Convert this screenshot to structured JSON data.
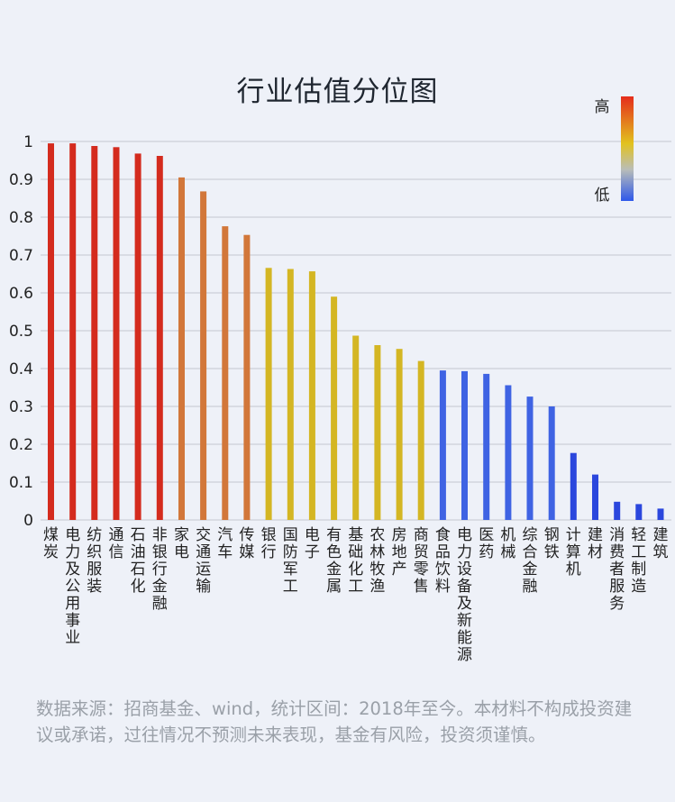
{
  "source_note": "数据来源：招商基金、wind，统计区间：2018年至今。本材料不构成投资建议或承诺，过往情况不预测未来表现，基金有风险，投资须谨慎。",
  "chart_data": {
    "type": "bar",
    "title": "行业估值分位图",
    "xlabel": "",
    "ylabel": "",
    "ylim": [
      0,
      1
    ],
    "yticks": [
      "0",
      "0.1",
      "0.2",
      "0.3",
      "0.4",
      "0.5",
      "0.6",
      "0.7",
      "0.8",
      "0.9",
      "1"
    ],
    "grid": true,
    "legend": {
      "type": "color-scale",
      "high_label": "高",
      "low_label": "低",
      "placement": "top-right"
    },
    "colors": {
      "high": "#d42b1e",
      "upper_mid": "#d2773a",
      "mid": "#d4b623",
      "low": "#3f63e3",
      "lowest": "#2b47dd"
    },
    "categories": [
      "煤炭",
      "电力及公用事业",
      "纺织服装",
      "通信",
      "石油石化",
      "非银行金融",
      "家电",
      "交通运输",
      "汽车",
      "传媒",
      "银行",
      "国防军工",
      "电子",
      "有色金属",
      "基础化工",
      "农林牧渔",
      "房地产",
      "商贸零售",
      "食品饮料",
      "电力设备及新能源",
      "医药",
      "机械",
      "综合金融",
      "钢铁",
      "计算机",
      "建材",
      "消费者服务",
      "轻工制造",
      "建筑"
    ],
    "values": [
      0.995,
      0.995,
      0.988,
      0.985,
      0.968,
      0.962,
      0.905,
      0.868,
      0.776,
      0.753,
      0.666,
      0.663,
      0.657,
      0.59,
      0.487,
      0.462,
      0.452,
      0.42,
      0.395,
      0.393,
      0.386,
      0.356,
      0.326,
      0.3,
      0.177,
      0.12,
      0.048,
      0.042,
      0.03
    ]
  }
}
